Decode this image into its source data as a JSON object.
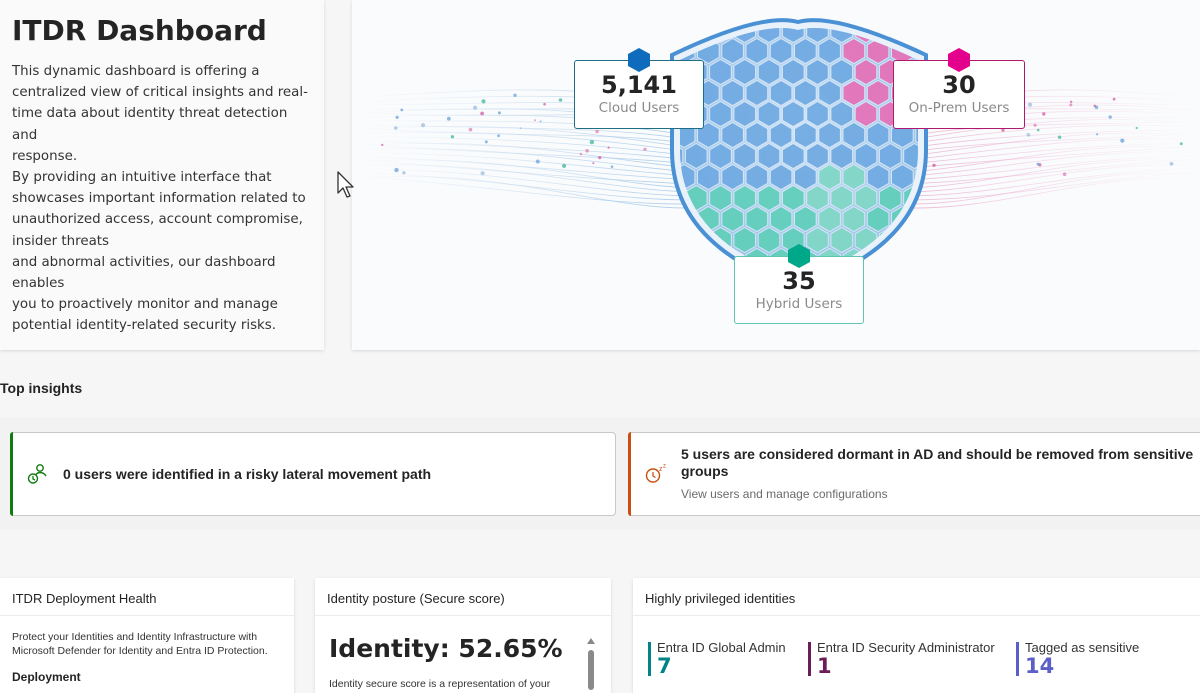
{
  "intro": {
    "title": "ITDR Dashboard",
    "description": "This dynamic dashboard is offering a\ncentralized view of critical insights and real-\ntime data about identity threat detection and\nresponse.\nBy providing an intuitive interface that\nshowcases important information related to\nunauthorized access, account compromise,\ninsider threats\nand abnormal activities, our dashboard enables\nyou to proactively monitor and manage\npotential identity-related security risks."
  },
  "hero": {
    "stats": [
      {
        "value": "5,141",
        "label": "Cloud Users",
        "color": "#0f6cbd",
        "border": "#1e6f86"
      },
      {
        "value": "30",
        "label": "On-Prem Users",
        "color": "#e3008c",
        "border": "#b0186e"
      },
      {
        "value": "35",
        "label": "Hybrid Users",
        "color": "#00a88a",
        "border": "#5fc4b0"
      }
    ]
  },
  "insights": {
    "section_title": "Top insights",
    "cards": [
      {
        "title": "0 users were identified in a risky lateral movement path",
        "subtitle": "",
        "accent": "#107c10",
        "icon": "lateral-movement-icon"
      },
      {
        "title": "5 users are considered dormant in AD and should be removed from sensitive\ngroups",
        "subtitle": "View users and manage configurations",
        "accent": "#ca5010",
        "icon": "dormant-clock-icon"
      }
    ]
  },
  "deployment": {
    "header": "ITDR Deployment Health",
    "description": "Protect your Identities and Identity Infrastructure with Microsoft Defender for Identity and Entra ID Protection.",
    "sub_heading": "Deployment"
  },
  "posture": {
    "header": "Identity posture (Secure score)",
    "score_text": "Identity: 52.65%",
    "caption": "Identity secure score is a representation of your"
  },
  "privileged": {
    "header": "Highly privileged identities",
    "items": [
      {
        "label": "Entra ID Global Admin",
        "value": "7",
        "color": "#038387"
      },
      {
        "label": "Entra ID Security Administrator",
        "value": "1",
        "color": "#6b1d5a"
      },
      {
        "label": "Tagged as sensitive",
        "value": "14",
        "color": "#5b5fc7"
      }
    ]
  }
}
